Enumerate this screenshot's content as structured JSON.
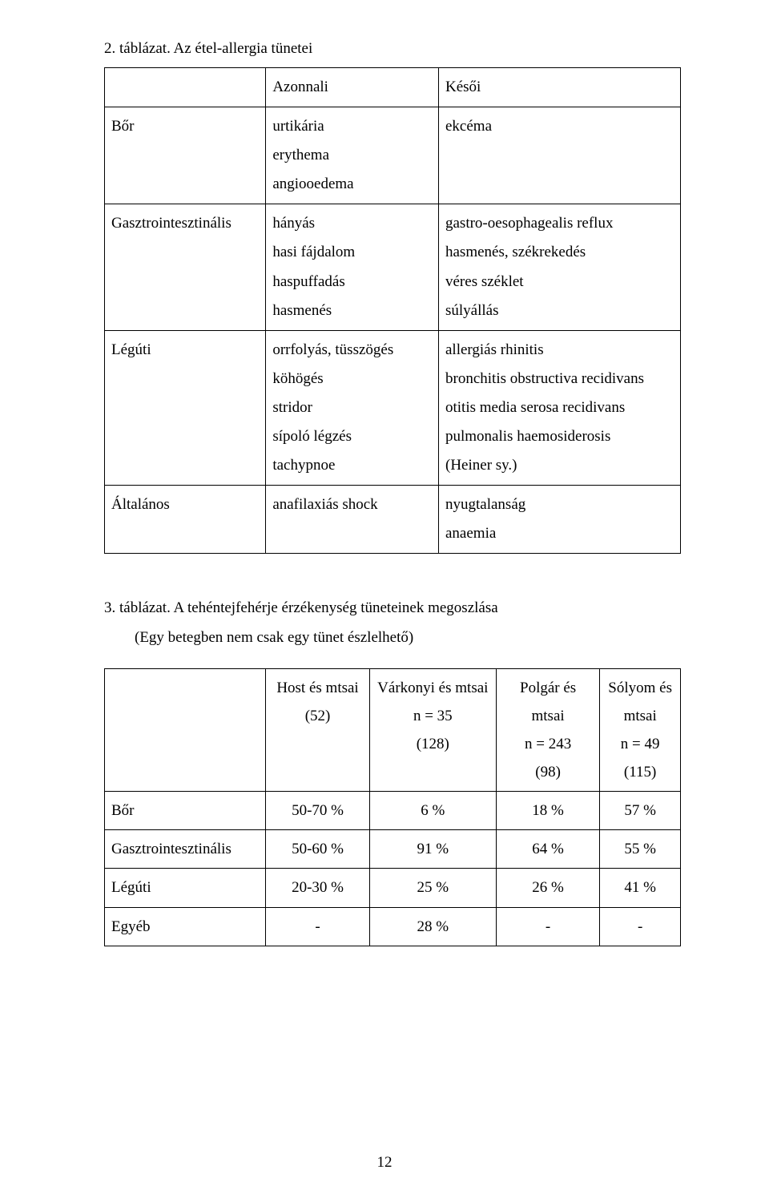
{
  "table2": {
    "caption": "2. táblázat. Az étel-allergia tünetei",
    "rows": [
      {
        "c1": "",
        "c2": "Azonnali",
        "c3": "Késői"
      },
      {
        "c1": "Bőr",
        "c2": "urtikária\nerythema\nangiooedema",
        "c3": "ekcéma"
      },
      {
        "c1": "Gasztrointesztinális",
        "c2": "hányás\nhasi fájdalom\nhaspuffadás\nhasmenés",
        "c3": "gastro-oesophagealis reflux\nhasmenés, székrekedés\nvéres széklet\nsúlyállás"
      },
      {
        "c1": "Légúti",
        "c2": "orrfolyás, tüsszögés\nköhögés\nstridor\nsípoló légzés\ntachypnoe",
        "c3": "allergiás rhinitis\nbronchitis obstructiva recidivans\notitis media serosa recidivans\npulmonalis haemosiderosis\n(Heiner sy.)"
      },
      {
        "c1": "Általános",
        "c2": "anafilaxiás shock",
        "c3": "nyugtalanság\nanaemia"
      }
    ]
  },
  "table3": {
    "caption_line1": "3. táblázat. A tehéntejfehérje érzékenység tüneteinek megoszlása",
    "caption_line2": "(Egy betegben nem csak egy tünet észlelhető)",
    "header": {
      "c1": "",
      "c2": "Host és mtsai\n(52)",
      "c3": "Várkonyi és mtsai\nn = 35\n(128)",
      "c4": "Polgár és mtsai\nn = 243\n(98)",
      "c5": "Sólyom és mtsai\nn = 49\n(115)"
    },
    "rows": [
      {
        "c1": "Bőr",
        "c2": "50-70 %",
        "c3": "6 %",
        "c4": "18 %",
        "c5": "57 %"
      },
      {
        "c1": "Gasztrointesztinális",
        "c2": "50-60 %",
        "c3": "91 %",
        "c4": "64 %",
        "c5": "55 %"
      },
      {
        "c1": "Légúti",
        "c2": "20-30 %",
        "c3": "25 %",
        "c4": "26 %",
        "c5": "41 %"
      },
      {
        "c1": "Egyéb",
        "c2": "-",
        "c3": "28 %",
        "c4": "-",
        "c5": "-"
      }
    ]
  },
  "page_number": "12"
}
